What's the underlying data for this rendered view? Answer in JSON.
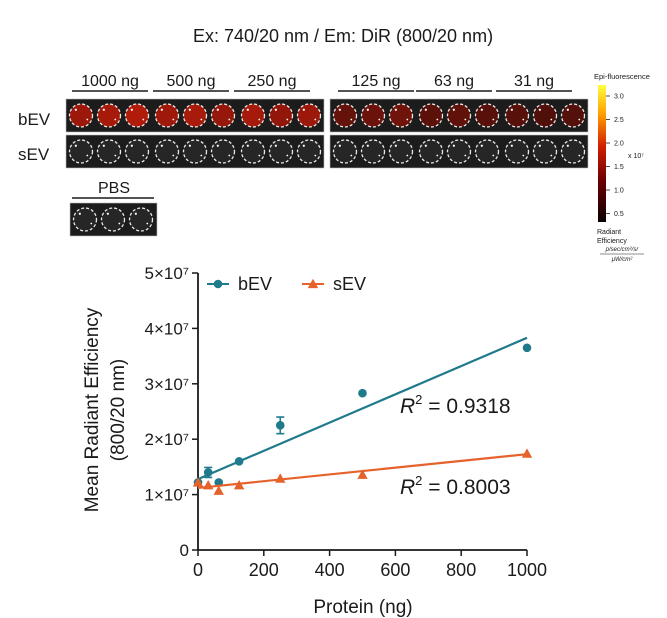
{
  "figure_title": "Ex: 740/20 nm / Em: DiR (800/20 nm)",
  "imaging": {
    "dose_labels": [
      "1000 ng",
      "500 ng",
      "250 ng",
      "125 ng",
      "63 ng",
      "31 ng"
    ],
    "row_labels": [
      "bEV",
      "sEV"
    ],
    "control_label": "PBS",
    "bEV_intensity": [
      0.85,
      0.8,
      0.78,
      0.45,
      0.35,
      0.3
    ],
    "sEV_intensity": [
      0.08,
      0.06,
      0.1,
      0.03,
      0.03,
      0.05
    ],
    "colorbar": {
      "title": "Epi-fluorescence",
      "ticks": [
        "3.0",
        "2.5",
        "2.0",
        "1.5",
        "1.0",
        "0.5"
      ],
      "multiplier": "x 10⁷",
      "unit_line1": "Radiant",
      "unit_line2": "Efficiency",
      "unit_num": "p/sec/cm²/sr",
      "unit_den": "μW/cm²"
    }
  },
  "chart_data": {
    "type": "scatter",
    "xlabel": "Protein (ng)",
    "ylabel_line1": "Mean Radiant Efficiency",
    "ylabel_line2": "(800/20 nm)",
    "xlim": [
      0,
      1000
    ],
    "ylim": [
      0,
      50000000
    ],
    "x_ticks": [
      "0",
      "200",
      "400",
      "600",
      "800",
      "1000"
    ],
    "y_ticks": [
      {
        "value": 0,
        "label": "0"
      },
      {
        "value": 10000000,
        "label": "1×10⁷"
      },
      {
        "value": 20000000,
        "label": "2×10⁷"
      },
      {
        "value": 30000000,
        "label": "3×10⁷"
      },
      {
        "value": 40000000,
        "label": "4×10⁷"
      },
      {
        "value": 50000000,
        "label": "5×10⁷"
      }
    ],
    "legend_position": "top",
    "series": [
      {
        "name": "bEV",
        "color": "#1f7a8c",
        "marker": "circle",
        "x": [
          0,
          31,
          63,
          125,
          250,
          500,
          1000
        ],
        "y": [
          12200000,
          14000000,
          12200000,
          16000000,
          22500000,
          28300000,
          36500000
        ],
        "err": [
          0,
          900000,
          0,
          0,
          1500000,
          0,
          0
        ],
        "fit": {
          "x": [
            0,
            1000
          ],
          "y": [
            12800000,
            38300000
          ]
        },
        "r2_label": "R",
        "r2_text": " = 0.9318"
      },
      {
        "name": "sEV",
        "color": "#e5622b",
        "marker": "triangle",
        "x": [
          0,
          31,
          63,
          125,
          250,
          500,
          1000
        ],
        "y": [
          12200000,
          11700000,
          10700000,
          11700000,
          12900000,
          13600000,
          17400000
        ],
        "err": [
          0,
          0,
          0,
          0,
          0,
          0,
          0
        ],
        "fit": {
          "x": [
            0,
            1000
          ],
          "y": [
            11200000,
            17300000
          ]
        },
        "r2_label": "R",
        "r2_text": " = 0.8003"
      }
    ]
  }
}
